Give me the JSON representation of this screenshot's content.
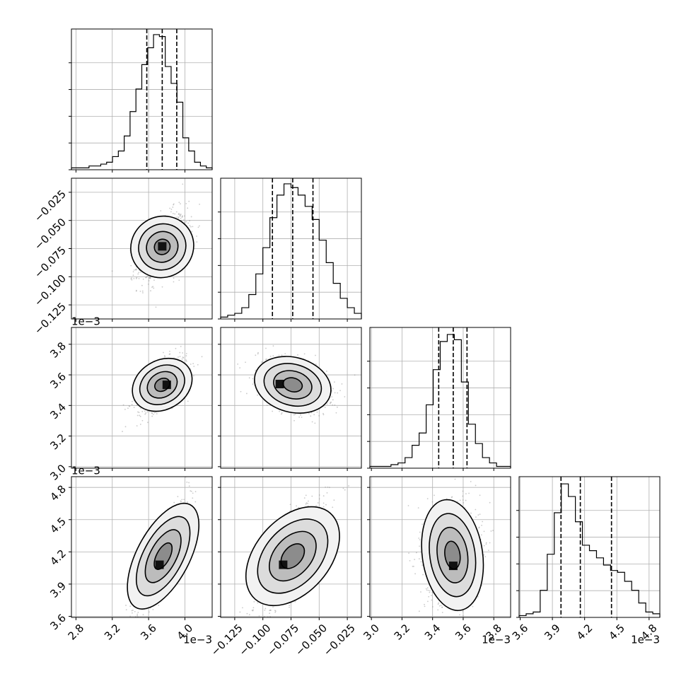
{
  "chart_data": {
    "type": "corner",
    "grid": true,
    "tick_rotation_deg": 45,
    "parameters": [
      {
        "range": [
          2.75,
          4.3
        ],
        "ticks": [
          2.8,
          3.2,
          3.6,
          4.0
        ],
        "tick_labels": [
          "2.8",
          "3.2",
          "3.6",
          "4.0"
        ],
        "offset": "1e−3",
        "quantiles": [
          3.58,
          3.75,
          3.91
        ],
        "hist": [
          1,
          1,
          1,
          2,
          2,
          3,
          4,
          7,
          10,
          18,
          31,
          43,
          56,
          65,
          72,
          71,
          55,
          46,
          36,
          17,
          10,
          4,
          2,
          1
        ],
        "hist_max": 75
      },
      {
        "range": [
          -0.1375,
          -0.0125
        ],
        "ticks": [
          -0.125,
          -0.1,
          -0.075,
          -0.05,
          -0.025
        ],
        "tick_labels": [
          "−0.125",
          "−0.100",
          "−0.075",
          "−0.050",
          "−0.025"
        ],
        "offset": "",
        "quantiles": [
          -0.0915,
          -0.0735,
          -0.0555
        ],
        "hist": [
          1,
          2,
          3,
          6,
          13,
          24,
          38,
          54,
          66,
          72,
          70,
          66,
          60,
          53,
          42,
          30,
          19,
          11,
          6,
          3
        ],
        "hist_max": 75
      },
      {
        "range": [
          2.99,
          3.91
        ],
        "ticks": [
          3.0,
          3.2,
          3.4,
          3.6,
          3.8
        ],
        "tick_labels": [
          "3.0",
          "3.2",
          "3.4",
          "3.6",
          "3.8"
        ],
        "offset": "1e−3",
        "quantiles": [
          3.44,
          3.535,
          3.625
        ],
        "hist": [
          1,
          1,
          1,
          2,
          3,
          6,
          13,
          20,
          36,
          56,
          72,
          76,
          73,
          49,
          25,
          14,
          6,
          3,
          1,
          1
        ],
        "hist_max": 80
      },
      {
        "range": [
          3.59,
          4.9
        ],
        "ticks": [
          3.6,
          3.9,
          4.2,
          4.5,
          4.8
        ],
        "tick_labels": [
          "3.6",
          "3.9",
          "4.2",
          "4.5",
          "4.8"
        ],
        "offset": "1e−3",
        "quantiles": [
          3.98,
          4.16,
          4.45
        ],
        "hist": [
          1,
          2,
          3,
          15,
          35,
          58,
          74,
          67,
          53,
          40,
          37,
          33,
          29,
          26,
          25,
          20,
          15,
          8,
          3,
          2
        ],
        "hist_max": 78
      }
    ],
    "pairs": [
      {
        "row": 1,
        "col": 0,
        "center": [
          3.75,
          -0.0735
        ],
        "slope": 0.05,
        "sx": 0.13,
        "sy": 0.0145,
        "peak": [
          3.75,
          -0.073
        ]
      },
      {
        "row": 2,
        "col": 0,
        "center": [
          3.75,
          3.535
        ],
        "slope": 0.35,
        "sx": 0.13,
        "sy": 0.085,
        "peak": [
          3.8,
          3.535
        ]
      },
      {
        "row": 2,
        "col": 1,
        "center": [
          -0.0735,
          3.535
        ],
        "slope": -2.0,
        "sx": 0.0145,
        "sy": 0.085,
        "peak": [
          -0.085,
          3.54
        ]
      },
      {
        "row": 3,
        "col": 0,
        "center": [
          3.76,
          4.16
        ],
        "slope": 1.6,
        "sx": 0.13,
        "sy": 0.24,
        "peak": [
          3.72,
          4.08
        ]
      },
      {
        "row": 3,
        "col": 1,
        "center": [
          -0.0735,
          4.16
        ],
        "slope": 12.0,
        "sx": 0.0145,
        "sy": 0.24,
        "peak": [
          -0.082,
          4.08
        ]
      },
      {
        "row": 3,
        "col": 2,
        "center": [
          3.53,
          4.17
        ],
        "slope": 0.2,
        "sx": 0.085,
        "sy": 0.24,
        "peak": [
          3.535,
          4.07
        ]
      }
    ],
    "contour_levels_sigma": [
      0.5,
      1.0,
      1.5,
      2.0
    ]
  }
}
